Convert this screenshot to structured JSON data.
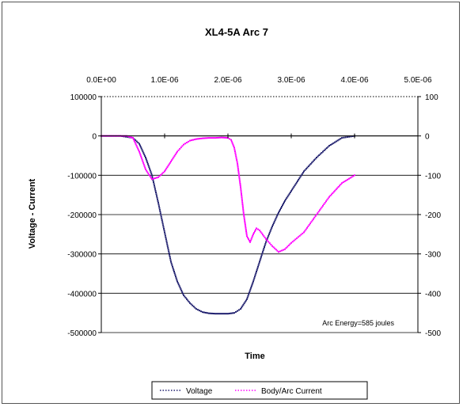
{
  "chart_data": {
    "type": "scatter",
    "title": "XL4-5A  Arc 7",
    "xlabel": "Time",
    "ylabel": "Voltage - Current",
    "x_tick_labels": [
      "0.0E+00",
      "1.0E-06",
      "2.0E-06",
      "3.0E-06",
      "4.0E-06",
      "5.0E-06"
    ],
    "x_ticks": [
      0,
      1e-06,
      2e-06,
      3e-06,
      4e-06,
      5e-06
    ],
    "xlim": [
      0,
      5e-06
    ],
    "y_left_tick_labels": [
      "100000",
      "0",
      "-100000",
      "-200000",
      "-300000",
      "-400000",
      "-500000"
    ],
    "y_left_ticks": [
      100000,
      0,
      -100000,
      -200000,
      -300000,
      -400000,
      -500000
    ],
    "ylim_left": [
      -500000,
      100000
    ],
    "y_right_tick_labels": [
      "100",
      "0",
      "-100",
      "-200",
      "-300",
      "-400",
      "-500"
    ],
    "y_right_ticks": [
      100,
      0,
      -100,
      -200,
      -300,
      -400,
      -500
    ],
    "ylim_right": [
      -500,
      100
    ],
    "grid": "horizontal",
    "legend_position": "bottom",
    "annotation": "Arc Energy=585 joules",
    "series": [
      {
        "name": "Voltage",
        "axis": "left",
        "color": "#1f1f6e",
        "x": [
          0,
          3e-07,
          5e-07,
          6e-07,
          7e-07,
          8e-07,
          9e-07,
          1e-06,
          1.1e-06,
          1.2e-06,
          1.3e-06,
          1.4e-06,
          1.5e-06,
          1.6e-06,
          1.7e-06,
          1.8e-06,
          1.9e-06,
          2e-06,
          2.1e-06,
          2.2e-06,
          2.3e-06,
          2.4e-06,
          2.5e-06,
          2.6e-06,
          2.7e-06,
          2.8e-06,
          2.9e-06,
          3e-06,
          3.1e-06,
          3.2e-06,
          3.4e-06,
          3.6e-06,
          3.8e-06,
          4e-06
        ],
        "y": [
          0,
          0,
          -5000,
          -20000,
          -55000,
          -100000,
          -170000,
          -245000,
          -320000,
          -370000,
          -405000,
          -425000,
          -440000,
          -448000,
          -451000,
          -452000,
          -452000,
          -452000,
          -450000,
          -440000,
          -415000,
          -370000,
          -320000,
          -270000,
          -230000,
          -195000,
          -165000,
          -140000,
          -115000,
          -90000,
          -55000,
          -25000,
          -5000,
          0
        ]
      },
      {
        "name": "Body/Arc Current",
        "axis": "right",
        "color": "#ff00ff",
        "x": [
          0,
          3e-07,
          4e-07,
          5e-07,
          6e-07,
          7e-07,
          8e-07,
          9e-07,
          1e-06,
          1.1e-06,
          1.2e-06,
          1.3e-06,
          1.4e-06,
          1.5e-06,
          1.6e-06,
          1.7e-06,
          1.8e-06,
          1.9e-06,
          2e-06,
          2.05e-06,
          2.1e-06,
          2.15e-06,
          2.2e-06,
          2.25e-06,
          2.3e-06,
          2.35e-06,
          2.4e-06,
          2.45e-06,
          2.5e-06,
          2.6e-06,
          2.7e-06,
          2.8e-06,
          2.9e-06,
          3e-06,
          3.2e-06,
          3.4e-06,
          3.6e-06,
          3.8e-06,
          4e-06
        ],
        "y": [
          0,
          0,
          0,
          -5,
          -40,
          -85,
          -110,
          -105,
          -90,
          -65,
          -40,
          -22,
          -12,
          -8,
          -6,
          -5,
          -5,
          -4,
          -5,
          -10,
          -30,
          -70,
          -130,
          -200,
          -255,
          -270,
          -250,
          -235,
          -240,
          -262,
          -280,
          -295,
          -288,
          -272,
          -245,
          -200,
          -155,
          -120,
          -100
        ]
      }
    ]
  }
}
